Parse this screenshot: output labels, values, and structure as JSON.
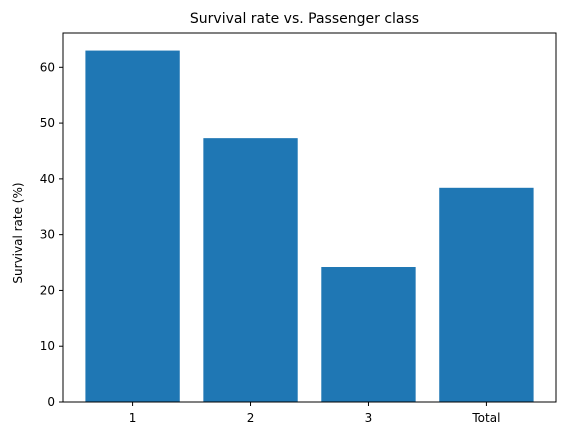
{
  "chart_data": {
    "type": "bar",
    "title": "Survival rate vs. Passenger class",
    "xlabel": "",
    "ylabel": "Survival rate (%)",
    "categories": [
      "1",
      "2",
      "3",
      "Total"
    ],
    "values": [
      63.0,
      47.3,
      24.2,
      38.4
    ],
    "ylim": [
      0,
      66.15
    ],
    "yticks": [
      0,
      10,
      20,
      30,
      40,
      50,
      60
    ],
    "grid": false,
    "bar_color": "#1f77b4"
  }
}
